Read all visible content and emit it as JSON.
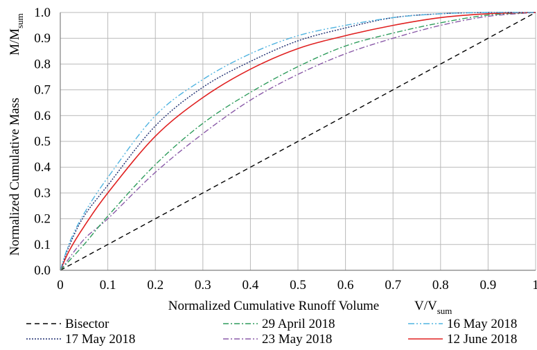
{
  "chart_data": {
    "type": "line",
    "title": "",
    "xlabel": "Normalized Cumulative Runoff Volume",
    "xlabel_symbol": {
      "main": "V/V",
      "sub": "sum"
    },
    "ylabel": "Normalized Cumulative Mass",
    "ylabel_symbol": {
      "main": "M/M",
      "sub": "sum"
    },
    "xlim": [
      0,
      1
    ],
    "ylim": [
      0,
      1
    ],
    "x_ticks": [
      "0",
      "0.1",
      "0.2",
      "0.3",
      "0.4",
      "0.5",
      "0.6",
      "0.7",
      "0.8",
      "0.9",
      "1"
    ],
    "y_ticks": [
      "0.0",
      "0.1",
      "0.2",
      "0.3",
      "0.4",
      "0.5",
      "0.6",
      "0.7",
      "0.8",
      "0.9",
      "1.0"
    ],
    "grid": true,
    "legend_position": "bottom",
    "series": [
      {
        "name": "Bisector",
        "color": "#000000",
        "dash": "dash",
        "x": [
          0,
          0.1,
          0.2,
          0.3,
          0.4,
          0.5,
          0.6,
          0.7,
          0.8,
          0.9,
          1.0
        ],
        "y": [
          0,
          0.1,
          0.2,
          0.3,
          0.4,
          0.5,
          0.6,
          0.7,
          0.8,
          0.9,
          1.0
        ]
      },
      {
        "name": "29 April 2018",
        "color": "#2e9c5c",
        "dash": "dashdot",
        "x": [
          0,
          0.05,
          0.1,
          0.2,
          0.3,
          0.4,
          0.5,
          0.6,
          0.7,
          0.8,
          0.9,
          1.0
        ],
        "y": [
          0,
          0.1,
          0.21,
          0.41,
          0.57,
          0.69,
          0.79,
          0.87,
          0.92,
          0.96,
          0.99,
          1.0
        ]
      },
      {
        "name": "16 May 2018",
        "color": "#4fb3e0",
        "dash": "dashdotdot",
        "x": [
          0,
          0.02,
          0.05,
          0.1,
          0.2,
          0.3,
          0.4,
          0.5,
          0.6,
          0.7,
          0.8,
          0.9,
          1.0
        ],
        "y": [
          0,
          0.11,
          0.22,
          0.36,
          0.6,
          0.74,
          0.84,
          0.91,
          0.95,
          0.98,
          0.995,
          1.0,
          1.0
        ]
      },
      {
        "name": "17 May 2018",
        "color": "#1a2a6e",
        "dash": "dot",
        "x": [
          0,
          0.02,
          0.05,
          0.1,
          0.2,
          0.3,
          0.4,
          0.5,
          0.6,
          0.7,
          0.8,
          0.9,
          1.0
        ],
        "y": [
          0,
          0.1,
          0.21,
          0.33,
          0.56,
          0.71,
          0.81,
          0.89,
          0.94,
          0.98,
          0.995,
          1.0,
          1.0
        ]
      },
      {
        "name": "23 May 2018",
        "color": "#8a5aa8",
        "dash": "dashdot",
        "x": [
          0,
          0.05,
          0.1,
          0.2,
          0.3,
          0.4,
          0.5,
          0.6,
          0.7,
          0.8,
          0.9,
          1.0
        ],
        "y": [
          0,
          0.12,
          0.2,
          0.38,
          0.53,
          0.66,
          0.76,
          0.84,
          0.9,
          0.95,
          0.985,
          1.0
        ]
      },
      {
        "name": "12 June 2018",
        "color": "#e02020",
        "dash": "solid",
        "x": [
          0,
          0.02,
          0.05,
          0.1,
          0.2,
          0.3,
          0.4,
          0.5,
          0.6,
          0.7,
          0.8,
          0.9,
          1.0
        ],
        "y": [
          0,
          0.08,
          0.17,
          0.3,
          0.52,
          0.67,
          0.78,
          0.86,
          0.91,
          0.95,
          0.98,
          0.995,
          1.0
        ]
      }
    ]
  }
}
